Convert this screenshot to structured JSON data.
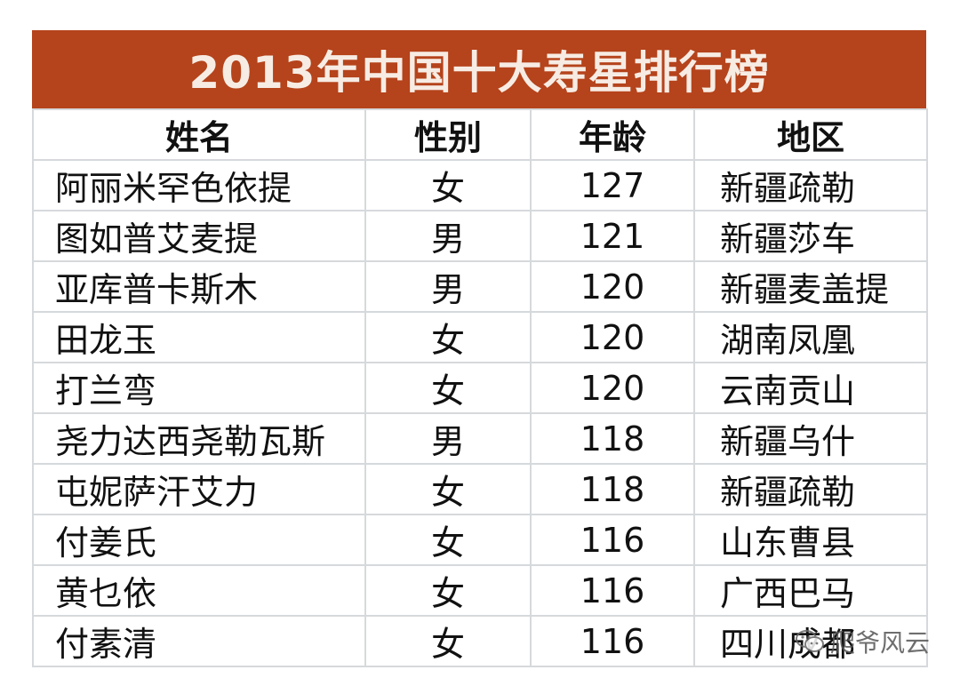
{
  "title": "2013年中国十大寿星排行榜",
  "headers": {
    "name": "姓名",
    "sex": "性别",
    "age": "年龄",
    "region": "地区"
  },
  "rows": [
    {
      "name": "阿丽米罕色依提",
      "sex": "女",
      "age": "127",
      "region": "新疆疏勒"
    },
    {
      "name": "图如普艾麦提",
      "sex": "男",
      "age": "121",
      "region": "新疆莎车"
    },
    {
      "name": "亚库普卡斯木",
      "sex": "男",
      "age": "120",
      "region": "新疆麦盖提"
    },
    {
      "name": "田龙玉",
      "sex": "女",
      "age": "120",
      "region": "湖南凤凰"
    },
    {
      "name": "打兰弯",
      "sex": "女",
      "age": "120",
      "region": "云南贡山"
    },
    {
      "name": "尧力达西尧勒瓦斯",
      "sex": "男",
      "age": "118",
      "region": "新疆乌什"
    },
    {
      "name": "屯妮萨汗艾力",
      "sex": "女",
      "age": "118",
      "region": "新疆疏勒"
    },
    {
      "name": "付姜氏",
      "sex": "女",
      "age": "116",
      "region": "山东曹县"
    },
    {
      "name": "黄乜依",
      "sex": "女",
      "age": "116",
      "region": "广西巴马"
    },
    {
      "name": "付素清",
      "sex": "女",
      "age": "116",
      "region": "四川成都"
    }
  ],
  "watermark": {
    "text": "爬爷风云",
    "icon": "wechat-icon"
  },
  "colors": {
    "title_bg": "#b5431b",
    "title_text": "#f7ece4",
    "grid": "#d6d9dc"
  }
}
